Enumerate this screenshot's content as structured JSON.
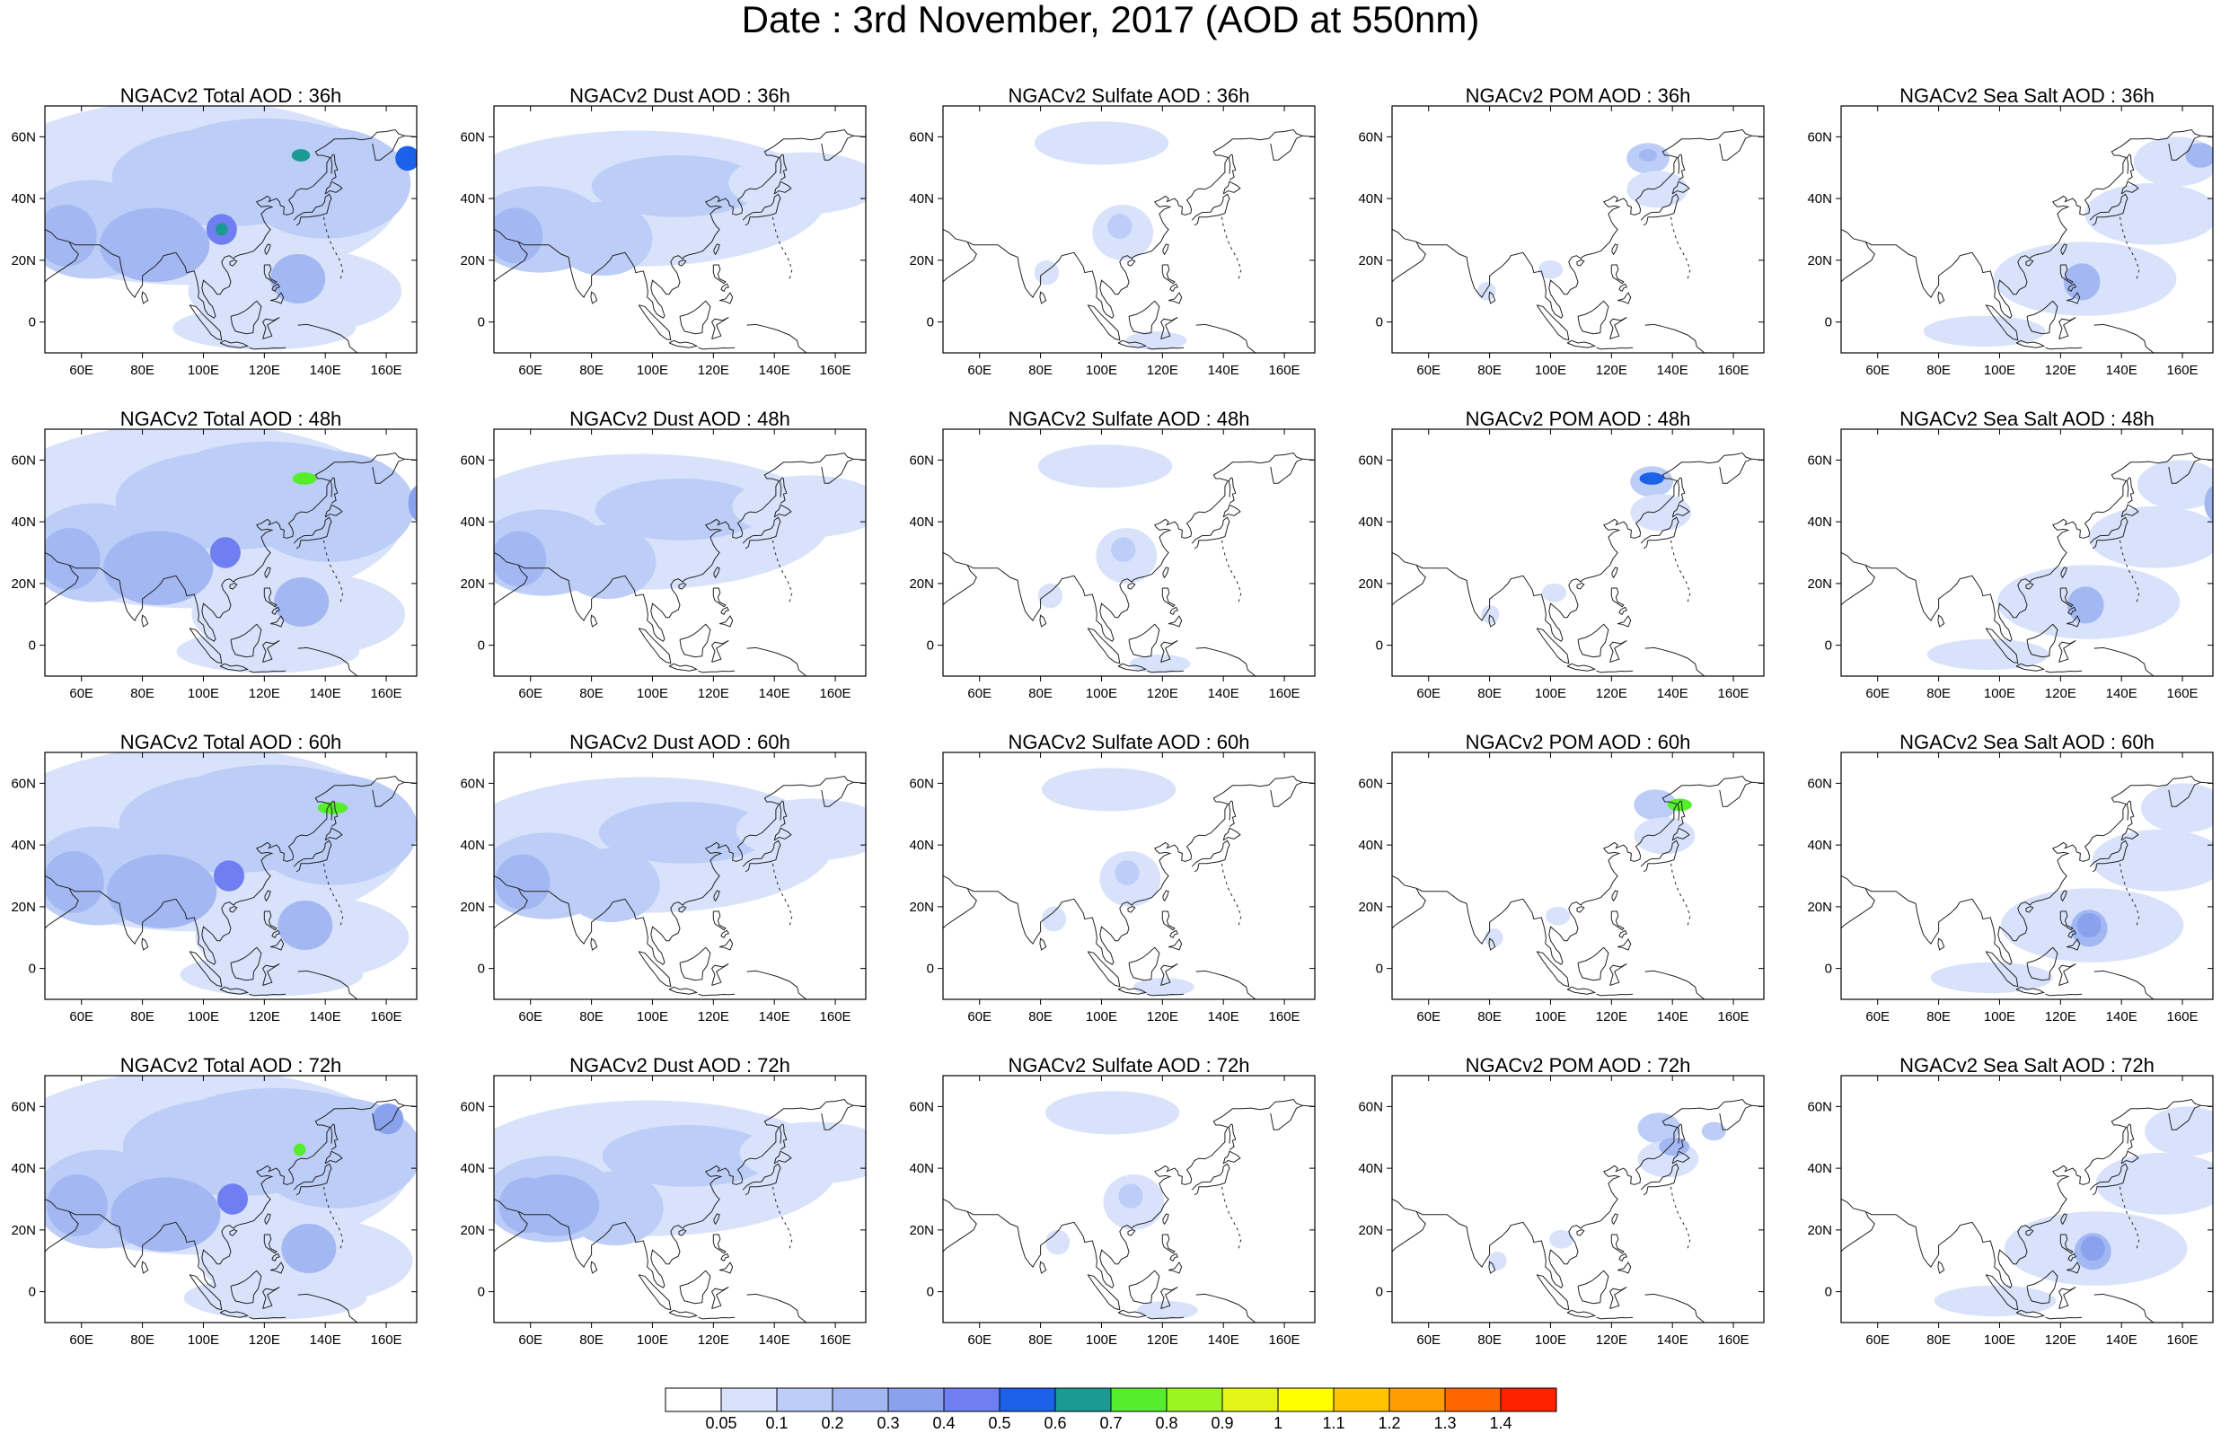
{
  "title": "Date : 3rd November, 2017 (AOD at 550nm)",
  "panels": [
    {
      "title": "NGACv2 Total AOD : 36h",
      "species": "total",
      "hour": 36
    },
    {
      "title": "NGACv2 Dust AOD : 36h",
      "species": "dust",
      "hour": 36
    },
    {
      "title": "NGACv2 Sulfate AOD : 36h",
      "species": "sulfate",
      "hour": 36
    },
    {
      "title": "NGACv2 POM AOD : 36h",
      "species": "pom",
      "hour": 36
    },
    {
      "title": "NGACv2 Sea Salt AOD : 36h",
      "species": "seasalt",
      "hour": 36
    },
    {
      "title": "NGACv2 Total AOD : 48h",
      "species": "total",
      "hour": 48
    },
    {
      "title": "NGACv2 Dust AOD : 48h",
      "species": "dust",
      "hour": 48
    },
    {
      "title": "NGACv2 Sulfate AOD : 48h",
      "species": "sulfate",
      "hour": 48
    },
    {
      "title": "NGACv2 POM AOD : 48h",
      "species": "pom",
      "hour": 48
    },
    {
      "title": "NGACv2 Sea Salt AOD : 48h",
      "species": "seasalt",
      "hour": 48
    },
    {
      "title": "NGACv2 Total AOD : 60h",
      "species": "total",
      "hour": 60
    },
    {
      "title": "NGACv2 Dust AOD : 60h",
      "species": "dust",
      "hour": 60
    },
    {
      "title": "NGACv2 Sulfate AOD : 60h",
      "species": "sulfate",
      "hour": 60
    },
    {
      "title": "NGACv2 POM AOD : 60h",
      "species": "pom",
      "hour": 60
    },
    {
      "title": "NGACv2 Sea Salt AOD : 60h",
      "species": "seasalt",
      "hour": 60
    },
    {
      "title": "NGACv2 Total AOD : 72h",
      "species": "total",
      "hour": 72
    },
    {
      "title": "NGACv2 Dust AOD : 72h",
      "species": "dust",
      "hour": 72
    },
    {
      "title": "NGACv2 Sulfate AOD : 72h",
      "species": "sulfate",
      "hour": 72
    },
    {
      "title": "NGACv2 POM AOD : 72h",
      "species": "pom",
      "hour": 72
    },
    {
      "title": "NGACv2 Sea Salt  AOD : 72h",
      "species": "seasalt",
      "hour": 72
    }
  ],
  "map": {
    "lon_range": [
      48,
      170
    ],
    "lat_range": [
      -10,
      70
    ],
    "lon_ticks": [
      60,
      80,
      100,
      120,
      140,
      160
    ],
    "lon_tick_labels": [
      "60E",
      "80E",
      "100E",
      "120E",
      "140E",
      "160E"
    ],
    "lat_ticks": [
      0,
      20,
      40,
      60
    ],
    "lat_tick_labels": [
      "0",
      "20N",
      "40N",
      "60N"
    ]
  },
  "colorbar": {
    "labels": [
      "0.05",
      "0.1",
      "0.2",
      "0.3",
      "0.4",
      "0.5",
      "0.6",
      "0.7",
      "0.8",
      "0.9",
      "1",
      "1.1",
      "1.2",
      "1.3",
      "1.4"
    ],
    "colors": [
      "#ffffff",
      "#d8e2fb",
      "#bccdf7",
      "#a3b8f3",
      "#8aa2ee",
      "#6f7ef0",
      "#1c62e8",
      "#1a9a92",
      "#56ee2c",
      "#9cf520",
      "#e6f518",
      "#ffff00",
      "#ffc400",
      "#ff9c00",
      "#ff6600",
      "#ff2200"
    ]
  },
  "chart_data": {
    "type": "heatmap",
    "title": "Date : 3rd November, 2017 (AOD at 550nm)",
    "variable": "AOD at 550nm",
    "model": "NGACv2",
    "species": [
      "Total",
      "Dust",
      "Sulfate",
      "POM",
      "Sea Salt"
    ],
    "forecast_hours": [
      36,
      48,
      60,
      72
    ],
    "lon_range": [
      48,
      170
    ],
    "lat_range": [
      -10,
      70
    ],
    "levels": [
      0.05,
      0.1,
      0.2,
      0.3,
      0.4,
      0.5,
      0.6,
      0.7,
      0.8,
      0.9,
      1,
      1.1,
      1.2,
      1.3,
      1.4
    ],
    "grid": false
  }
}
